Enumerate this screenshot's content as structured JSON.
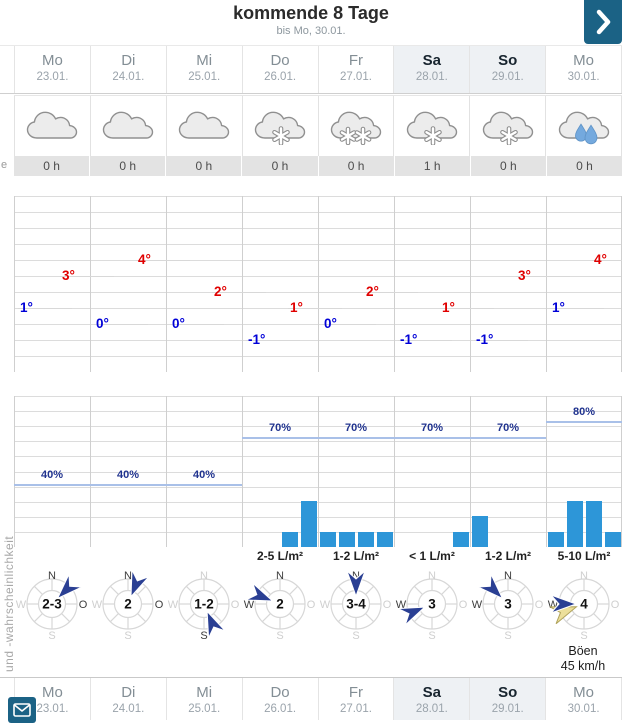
{
  "header": {
    "title": "kommende 8 Tage",
    "subtitle": "bis Mo, 30.01.",
    "next_button_icon": "chevron-right"
  },
  "days": [
    {
      "name": "Mo",
      "date": "23.01.",
      "highlighted": false
    },
    {
      "name": "Di",
      "date": "24.01.",
      "highlighted": false
    },
    {
      "name": "Mi",
      "date": "25.01.",
      "highlighted": false
    },
    {
      "name": "Do",
      "date": "26.01.",
      "highlighted": false
    },
    {
      "name": "Fr",
      "date": "27.01.",
      "highlighted": false
    },
    {
      "name": "Sa",
      "date": "28.01.",
      "highlighted": true
    },
    {
      "name": "So",
      "date": "29.01.",
      "highlighted": true
    },
    {
      "name": "Mo",
      "date": "30.01.",
      "highlighted": false
    }
  ],
  "weather_icons": [
    "cloud",
    "cloud",
    "cloud",
    "cloud-snow-1",
    "cloud-snow-2",
    "cloud-snow-1",
    "cloud-snow-1",
    "cloud-rain-2"
  ],
  "sun_hours": [
    "0 h",
    "0 h",
    "0 h",
    "0 h",
    "0 h",
    "1 h",
    "0 h",
    "0 h"
  ],
  "axis_labels": {
    "sun_row_partial": "e",
    "precip_rotated": "und -wahrscheinlichkeit"
  },
  "chart_data": [
    {
      "type": "line",
      "name": "temperature",
      "categories": [
        "Mo 23.01.",
        "Di 24.01.",
        "Mi 25.01.",
        "Do 26.01.",
        "Fr 27.01.",
        "Sa 28.01.",
        "So 29.01.",
        "Mo 30.01."
      ],
      "series": [
        {
          "name": "max",
          "color": "#e00000",
          "values": [
            3,
            4,
            2,
            1,
            2,
            1,
            3,
            4
          ]
        },
        {
          "name": "min",
          "color": "#0000d7",
          "values": [
            1,
            0,
            0,
            -1,
            0,
            -1,
            -1,
            1
          ]
        }
      ],
      "unit": "°",
      "ylim": [
        -3,
        8
      ],
      "grid": true
    },
    {
      "type": "bar",
      "name": "precipitation",
      "categories": [
        "Mo 23.01.",
        "Di 24.01.",
        "Mi 25.01.",
        "Do 26.01.",
        "Fr 27.01.",
        "Sa 28.01.",
        "So 29.01.",
        "Mo 30.01."
      ],
      "probability_pct": [
        40,
        40,
        40,
        70,
        70,
        70,
        70,
        80
      ],
      "amount_labels": [
        "",
        "",
        "",
        "2-5 L/m²",
        "1-2 L/m²",
        "< 1 L/m²",
        "1-2 L/m²",
        "5-10 L/m²"
      ],
      "bars_6h_units": [
        [
          0,
          0,
          0,
          0
        ],
        [
          0,
          0,
          0,
          0
        ],
        [
          0,
          0,
          0,
          0
        ],
        [
          0,
          0,
          1,
          3
        ],
        [
          1,
          1,
          1,
          1
        ],
        [
          0,
          0,
          0,
          1
        ],
        [
          2,
          0,
          0,
          0
        ],
        [
          1,
          3,
          3,
          1
        ]
      ],
      "bar_color": "#2d96d8",
      "probability_line_color": "#a9c0e8",
      "probability_text_color": "#20338f",
      "ylim_pct": [
        0,
        96
      ]
    }
  ],
  "wind": {
    "strength_bft": [
      "2-3",
      "2",
      "1-2",
      "2",
      "3-4",
      "3",
      "3",
      "4"
    ],
    "from_deg": [
      45,
      22,
      157,
      292,
      0,
      247,
      315,
      270
    ],
    "active_dirs": [
      [
        "N",
        "O"
      ],
      [
        "N",
        "O"
      ],
      [
        "S"
      ],
      [
        "W",
        "N"
      ],
      [
        "N"
      ],
      [
        "W"
      ],
      [
        "N",
        "W"
      ],
      [
        "W"
      ]
    ],
    "compass_letters": {
      "n": "N",
      "o": "O",
      "s": "S",
      "w": "W"
    },
    "arrow_color": "#2a3f93",
    "gust": {
      "day_index": 7,
      "label": "Böen",
      "value": "45 km/h",
      "arrow_color": "#ecdf9a"
    }
  },
  "colors": {
    "accent_teal": "#1b6285",
    "highlight_bg": "#eef1f4",
    "sun_band_bg": "#e3e3e3",
    "bar_blue": "#2d96d8",
    "temp_max_red": "#e00000",
    "temp_min_blue": "#0000d7"
  }
}
